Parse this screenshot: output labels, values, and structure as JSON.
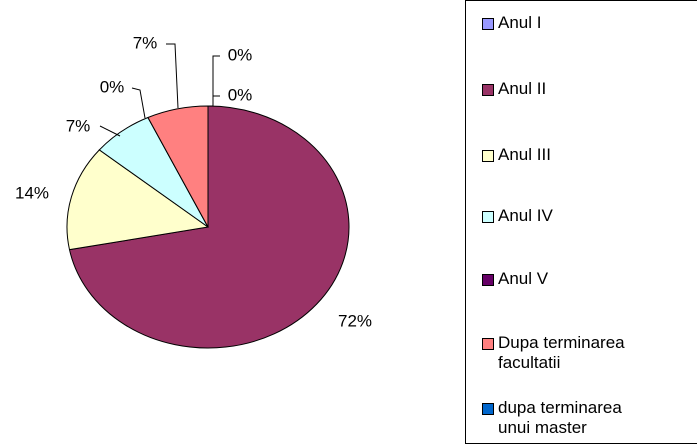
{
  "chart_data": {
    "type": "pie",
    "categories": [
      "Anul I",
      "Anul II",
      "Anul III",
      "Anul IV",
      "Anul V",
      "Dupa terminarea facultatii",
      "dupa terminarea unui master"
    ],
    "values": [
      0,
      72,
      14,
      7,
      0,
      7,
      0
    ],
    "value_labels": [
      "0%",
      "72%",
      "14%",
      "7%",
      "0%",
      "7%",
      "0%"
    ],
    "colors": [
      "#9999ff",
      "#993366",
      "#ffffcc",
      "#ccffff",
      "#660066",
      "#ff8080",
      "#0066cc"
    ],
    "legend": "right"
  }
}
